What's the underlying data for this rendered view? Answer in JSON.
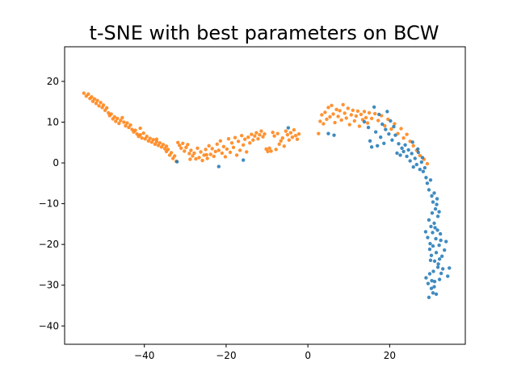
{
  "chart_data": {
    "type": "scatter",
    "title": "t-SNE with best parameters on BCW",
    "xlabel": "",
    "ylabel": "",
    "xlim": [
      -59.5,
      38.5
    ],
    "ylim": [
      -44.5,
      28.5
    ],
    "xticks": [
      -40,
      -20,
      0,
      20
    ],
    "yticks": [
      -40,
      -30,
      -20,
      -10,
      0,
      10,
      20
    ],
    "grid": false,
    "legend": "none",
    "colors": [
      "#1f77b4",
      "#ff7f0e"
    ],
    "series": [
      {
        "color": "#ff7f0e",
        "points": [
          [
            -54.8,
            17.1
          ],
          [
            -54.2,
            16.4
          ],
          [
            -53.7,
            16.9
          ],
          [
            -53.3,
            15.8
          ],
          [
            -52.9,
            16.2
          ],
          [
            -52.6,
            15.1
          ],
          [
            -52.2,
            15.7
          ],
          [
            -51.8,
            14.6
          ],
          [
            -51.5,
            15.3
          ],
          [
            -51.1,
            14.0
          ],
          [
            -50.7,
            14.8
          ],
          [
            -50.3,
            13.6
          ],
          [
            -50.0,
            14.2
          ],
          [
            -49.6,
            12.9
          ],
          [
            -49.2,
            13.5
          ],
          [
            -48.8,
            12.3
          ],
          [
            -48.5,
            11.6
          ],
          [
            -48.1,
            12.0
          ],
          [
            -47.7,
            10.8
          ],
          [
            -47.3,
            11.3
          ],
          [
            -47.0,
            10.2
          ],
          [
            -46.6,
            10.9
          ],
          [
            -46.2,
            9.7
          ],
          [
            -45.8,
            10.4
          ],
          [
            -45.4,
            11.1
          ],
          [
            -45.0,
            10.0
          ],
          [
            -44.6,
            9.1
          ],
          [
            -44.2,
            9.8
          ],
          [
            -43.8,
            8.7
          ],
          [
            -43.4,
            9.3
          ],
          [
            -43.0,
            8.2
          ],
          [
            -42.6,
            7.6
          ],
          [
            -42.2,
            8.0
          ],
          [
            -41.8,
            7.1
          ],
          [
            -41.4,
            6.5
          ],
          [
            -41.0,
            6.9
          ],
          [
            -40.6,
            6.1
          ],
          [
            -40.2,
            7.3
          ],
          [
            -39.8,
            5.9
          ],
          [
            -39.4,
            6.5
          ],
          [
            -39.0,
            5.4
          ],
          [
            -38.6,
            6.0
          ],
          [
            -38.2,
            5.1
          ],
          [
            -37.8,
            5.7
          ],
          [
            -37.4,
            4.6
          ],
          [
            -37.0,
            5.2
          ],
          [
            -36.6,
            4.3
          ],
          [
            -36.2,
            4.9
          ],
          [
            -35.8,
            3.9
          ],
          [
            -35.4,
            4.5
          ],
          [
            -35.0,
            3.5
          ],
          [
            -34.6,
            2.8
          ],
          [
            -34.2,
            3.3
          ],
          [
            -33.8,
            1.9
          ],
          [
            -33.4,
            2.5
          ],
          [
            -33.0,
            1.1
          ],
          [
            -32.6,
            1.7
          ],
          [
            -32.2,
            0.4
          ],
          [
            -31.8,
            5.0
          ],
          [
            -31.4,
            4.3
          ],
          [
            -31.0,
            3.6
          ],
          [
            -30.6,
            4.8
          ],
          [
            -30.2,
            2.9
          ],
          [
            -29.8,
            3.8
          ],
          [
            -29.4,
            4.5
          ],
          [
            -29.0,
            2.3
          ],
          [
            -28.6,
            3.1
          ],
          [
            -28.2,
            1.7
          ],
          [
            -27.8,
            2.4
          ],
          [
            -27.4,
            1.0
          ],
          [
            -27.0,
            3.6
          ],
          [
            -26.6,
            1.3
          ],
          [
            -26.2,
            2.7
          ],
          [
            -25.8,
            0.6
          ],
          [
            -25.4,
            1.9
          ],
          [
            -25.0,
            3.3
          ],
          [
            -24.6,
            1.1
          ],
          [
            -24.2,
            4.2
          ],
          [
            -23.8,
            2.1
          ],
          [
            -23.4,
            3.5
          ],
          [
            -23.0,
            1.6
          ],
          [
            -22.6,
            2.8
          ],
          [
            -22.2,
            4.6
          ],
          [
            -21.8,
            3.1
          ],
          [
            -21.4,
            5.4
          ],
          [
            -21.0,
            2.4
          ],
          [
            -20.6,
            4.0
          ],
          [
            -20.2,
            1.5
          ],
          [
            -19.8,
            3.4
          ],
          [
            -19.4,
            5.9
          ],
          [
            -19.0,
            2.6
          ],
          [
            -18.6,
            4.9
          ],
          [
            -18.2,
            3.8
          ],
          [
            -17.8,
            6.2
          ],
          [
            -17.4,
            1.9
          ],
          [
            -17.0,
            5.3
          ],
          [
            -16.6,
            3.1
          ],
          [
            -16.2,
            6.7
          ],
          [
            -15.8,
            4.4
          ],
          [
            -15.4,
            5.8
          ],
          [
            -15.0,
            2.7
          ],
          [
            -14.6,
            6.3
          ],
          [
            -14.2,
            4.9
          ],
          [
            -13.8,
            7.0
          ],
          [
            -13.4,
            5.6
          ],
          [
            -13.0,
            6.6
          ],
          [
            -12.6,
            7.4
          ],
          [
            -12.2,
            5.9
          ],
          [
            -11.8,
            6.9
          ],
          [
            -11.4,
            7.8
          ],
          [
            -11.0,
            6.4
          ],
          [
            -10.6,
            7.1
          ],
          [
            -10.2,
            3.4
          ],
          [
            -9.8,
            2.8
          ],
          [
            -9.4,
            3.6
          ],
          [
            -9.0,
            2.9
          ],
          [
            -8.6,
            7.5
          ],
          [
            -8.2,
            6.6
          ],
          [
            -7.8,
            3.3
          ],
          [
            -7.4,
            7.2
          ],
          [
            -7.0,
            4.6
          ],
          [
            -6.6,
            5.4
          ],
          [
            -6.2,
            6.1
          ],
          [
            -5.8,
            4.1
          ],
          [
            -5.4,
            7.8
          ],
          [
            -5.0,
            6.9
          ],
          [
            -4.6,
            5.6
          ],
          [
            -4.2,
            7.4
          ],
          [
            -3.8,
            6.3
          ],
          [
            -3.4,
            8.1
          ],
          [
            -3.0,
            6.7
          ],
          [
            -2.6,
            5.8
          ],
          [
            -2.2,
            7.1
          ],
          [
            2.6,
            7.2
          ],
          [
            3.0,
            10.2
          ],
          [
            3.4,
            11.8
          ],
          [
            3.8,
            9.6
          ],
          [
            4.2,
            12.4
          ],
          [
            4.6,
            10.7
          ],
          [
            5.0,
            13.6
          ],
          [
            5.4,
            11.3
          ],
          [
            5.8,
            14.1
          ],
          [
            6.2,
            12.0
          ],
          [
            6.6,
            9.9
          ],
          [
            7.0,
            13.1
          ],
          [
            7.4,
            11.4
          ],
          [
            7.8,
            12.8
          ],
          [
            8.2,
            10.5
          ],
          [
            8.6,
            14.3
          ],
          [
            9.0,
            12.2
          ],
          [
            9.4,
            11.0
          ],
          [
            9.8,
            13.4
          ],
          [
            10.2,
            9.4
          ],
          [
            10.6,
            11.8
          ],
          [
            11.0,
            12.9
          ],
          [
            11.4,
            10.3
          ],
          [
            11.8,
            11.5
          ],
          [
            12.2,
            12.7
          ],
          [
            12.6,
            9.0
          ],
          [
            13.0,
            11.9
          ],
          [
            13.4,
            10.6
          ],
          [
            13.8,
            12.6
          ],
          [
            14.2,
            11.1
          ],
          [
            14.6,
            9.8
          ],
          [
            15.0,
            12.3
          ],
          [
            15.6,
            10.9
          ],
          [
            16.4,
            12.1
          ],
          [
            17.2,
            10.4
          ],
          [
            18.0,
            11.6
          ],
          [
            18.8,
            9.1
          ],
          [
            19.6,
            10.7
          ],
          [
            20.4,
            8.3
          ],
          [
            21.2,
            9.6
          ],
          [
            22.0,
            7.2
          ],
          [
            22.8,
            8.4
          ],
          [
            23.4,
            6.1
          ],
          [
            24.2,
            7.0
          ],
          [
            25.0,
            5.3
          ],
          [
            25.8,
            4.2
          ],
          [
            26.6,
            3.1
          ],
          [
            27.4,
            1.8
          ],
          [
            28.4,
            0.9
          ],
          [
            29.2,
            -0.2
          ],
          [
            -41.0,
            8.5
          ],
          [
            -37.0,
            5.8
          ],
          [
            -34.6,
            4.1
          ],
          [
            -28.8,
            0.9
          ],
          [
            -24.8,
            2.0
          ]
        ]
      },
      {
        "color": "#1f77b4",
        "points": [
          [
            -32.0,
            0.3
          ],
          [
            -21.8,
            -0.9
          ],
          [
            -15.8,
            0.7
          ],
          [
            -4.8,
            8.6
          ],
          [
            5.0,
            7.2
          ],
          [
            6.4,
            6.8
          ],
          [
            13.8,
            10.1
          ],
          [
            14.8,
            8.7
          ],
          [
            15.2,
            5.4
          ],
          [
            15.6,
            3.9
          ],
          [
            16.2,
            13.7
          ],
          [
            16.6,
            7.6
          ],
          [
            17.0,
            4.2
          ],
          [
            17.4,
            11.9
          ],
          [
            17.8,
            6.3
          ],
          [
            18.2,
            9.5
          ],
          [
            18.6,
            4.8
          ],
          [
            19.0,
            8.2
          ],
          [
            19.4,
            12.6
          ],
          [
            19.8,
            7.1
          ],
          [
            20.2,
            10.3
          ],
          [
            20.6,
            5.6
          ],
          [
            21.0,
            8.9
          ],
          [
            21.4,
            6.8
          ],
          [
            21.8,
            2.4
          ],
          [
            22.2,
            4.7
          ],
          [
            22.6,
            1.9
          ],
          [
            23.0,
            3.6
          ],
          [
            23.4,
            2.8
          ],
          [
            23.8,
            4.4
          ],
          [
            24.2,
            1.6
          ],
          [
            24.6,
            3.2
          ],
          [
            25.0,
            0.5
          ],
          [
            25.4,
            2.3
          ],
          [
            25.8,
            -1.0
          ],
          [
            26.2,
            1.1
          ],
          [
            26.6,
            -0.4
          ],
          [
            27.0,
            2.6
          ],
          [
            27.4,
            -1.6
          ],
          [
            27.8,
            0.2
          ],
          [
            28.2,
            -2.1
          ],
          [
            28.6,
            -1.2
          ],
          [
            28.9,
            -3.6
          ],
          [
            29.2,
            -5.0
          ],
          [
            29.6,
            -6.6
          ],
          [
            30.0,
            -4.2
          ],
          [
            30.3,
            -8.1
          ],
          [
            30.6,
            -9.6
          ],
          [
            30.9,
            -7.4
          ],
          [
            31.2,
            -11.3
          ],
          [
            31.5,
            -10.2
          ],
          [
            31.8,
            -13.1
          ],
          [
            32.1,
            -12.0
          ],
          [
            29.6,
            -14.0
          ],
          [
            30.1,
            -15.6
          ],
          [
            30.5,
            -17.1
          ],
          [
            30.9,
            -14.8
          ],
          [
            31.3,
            -18.6
          ],
          [
            31.7,
            -16.5
          ],
          [
            32.1,
            -20.2
          ],
          [
            32.5,
            -19.0
          ],
          [
            28.8,
            -16.9
          ],
          [
            29.3,
            -18.3
          ],
          [
            29.8,
            -21.2
          ],
          [
            30.2,
            -22.7
          ],
          [
            30.6,
            -20.4
          ],
          [
            31.0,
            -24.1
          ],
          [
            31.4,
            -22.0
          ],
          [
            31.8,
            -25.6
          ],
          [
            32.2,
            -23.6
          ],
          [
            32.6,
            -27.1
          ],
          [
            33.0,
            -26.0
          ],
          [
            33.4,
            -21.4
          ],
          [
            33.8,
            -19.3
          ],
          [
            34.2,
            -27.8
          ],
          [
            34.6,
            -25.8
          ],
          [
            28.9,
            -28.2
          ],
          [
            29.4,
            -29.6
          ],
          [
            29.8,
            -27.2
          ],
          [
            30.2,
            -30.8
          ],
          [
            30.6,
            -31.9
          ],
          [
            31.0,
            -29.1
          ],
          [
            31.4,
            -32.2
          ],
          [
            29.6,
            -33.0
          ],
          [
            30.9,
            -30.4
          ],
          [
            32.2,
            -28.6
          ],
          [
            30.4,
            -12.3
          ],
          [
            31.1,
            -15.9
          ],
          [
            30.0,
            -23.9
          ],
          [
            31.6,
            -8.8
          ],
          [
            32.4,
            -17.4
          ],
          [
            29.9,
            -19.8
          ],
          [
            31.9,
            -24.8
          ],
          [
            30.7,
            -26.6
          ],
          [
            32.8,
            -22.9
          ],
          [
            30.3,
            -28.9
          ],
          [
            25.6,
            5.1
          ],
          [
            26.9,
            3.4
          ],
          [
            28.0,
            1.3
          ]
        ]
      }
    ]
  }
}
